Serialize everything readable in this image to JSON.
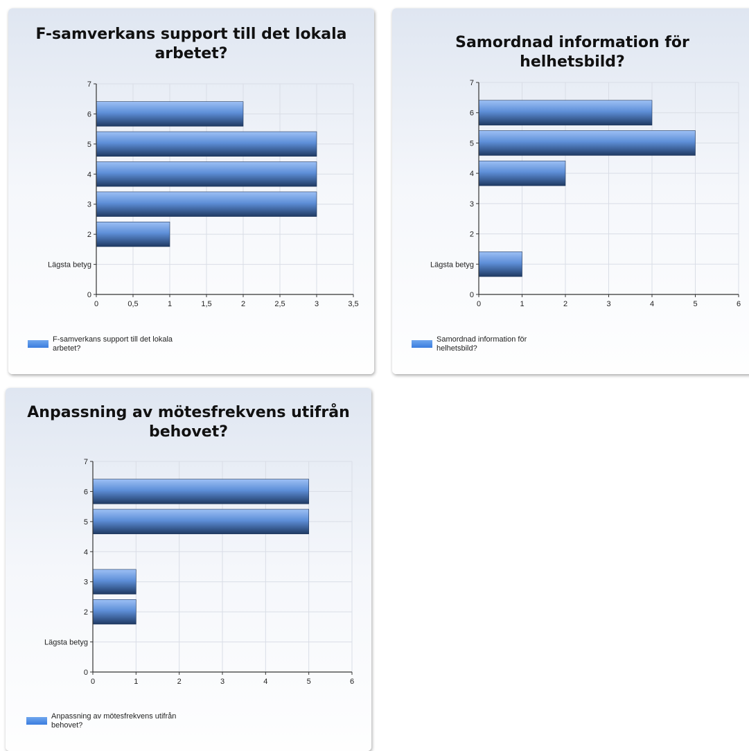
{
  "colors": {
    "bar_top": "#9dc0f5",
    "bar_mid": "#5e8fd8",
    "bar_bottom": "#1f3a63",
    "grid": "#d9dde6",
    "axis": "#333333",
    "legend_swatch": "#4a8be6"
  },
  "chart_data": [
    {
      "type": "bar",
      "orientation": "horizontal",
      "title": "F-samverkans support till det lokala arbetet?",
      "y_ticks": [
        {
          "value": 0,
          "label": "0"
        },
        {
          "value": 1,
          "label": "Lägsta betyg"
        },
        {
          "value": 2,
          "label": "2"
        },
        {
          "value": 3,
          "label": "3"
        },
        {
          "value": 4,
          "label": "4"
        },
        {
          "value": 5,
          "label": "5"
        },
        {
          "value": 6,
          "label": "6"
        },
        {
          "value": 7,
          "label": "7"
        }
      ],
      "x_ticks": [
        "0",
        "0,5",
        "1",
        "1,5",
        "2",
        "2,5",
        "3",
        "3,5"
      ],
      "xlim": [
        0,
        3.5
      ],
      "ylim": [
        0,
        7
      ],
      "categories": [
        6,
        5,
        4,
        3,
        2
      ],
      "values": [
        2,
        3,
        3,
        3,
        1
      ],
      "legend": "F-samverkans support till det lokala arbetet?",
      "grid": true
    },
    {
      "type": "bar",
      "orientation": "horizontal",
      "title": "Samordnad information för helhetsbild?",
      "y_ticks": [
        {
          "value": 0,
          "label": "0"
        },
        {
          "value": 1,
          "label": "Lägsta betyg"
        },
        {
          "value": 2,
          "label": "2"
        },
        {
          "value": 3,
          "label": "3"
        },
        {
          "value": 4,
          "label": "4"
        },
        {
          "value": 5,
          "label": "5"
        },
        {
          "value": 6,
          "label": "6"
        },
        {
          "value": 7,
          "label": "7"
        }
      ],
      "x_ticks": [
        "0",
        "1",
        "2",
        "3",
        "4",
        "5",
        "6"
      ],
      "xlim": [
        0,
        6
      ],
      "ylim": [
        0,
        7
      ],
      "categories": [
        6,
        5,
        4,
        1
      ],
      "values": [
        4,
        5,
        2,
        1
      ],
      "legend": "Samordnad information för helhetsbild?",
      "grid": true
    },
    {
      "type": "bar",
      "orientation": "horizontal",
      "title": "Anpassning av mötesfrekvens utifrån behovet?",
      "y_ticks": [
        {
          "value": 0,
          "label": "0"
        },
        {
          "value": 1,
          "label": "Lägsta betyg"
        },
        {
          "value": 2,
          "label": "2"
        },
        {
          "value": 3,
          "label": "3"
        },
        {
          "value": 4,
          "label": "4"
        },
        {
          "value": 5,
          "label": "5"
        },
        {
          "value": 6,
          "label": "6"
        },
        {
          "value": 7,
          "label": "7"
        }
      ],
      "x_ticks": [
        "0",
        "1",
        "2",
        "3",
        "4",
        "5",
        "6"
      ],
      "xlim": [
        0,
        6
      ],
      "ylim": [
        0,
        7
      ],
      "categories": [
        6,
        5,
        3,
        2
      ],
      "values": [
        5,
        5,
        1,
        1
      ],
      "legend": "Anpassning av mötesfrekvens utifrån behovet?",
      "grid": true
    }
  ]
}
